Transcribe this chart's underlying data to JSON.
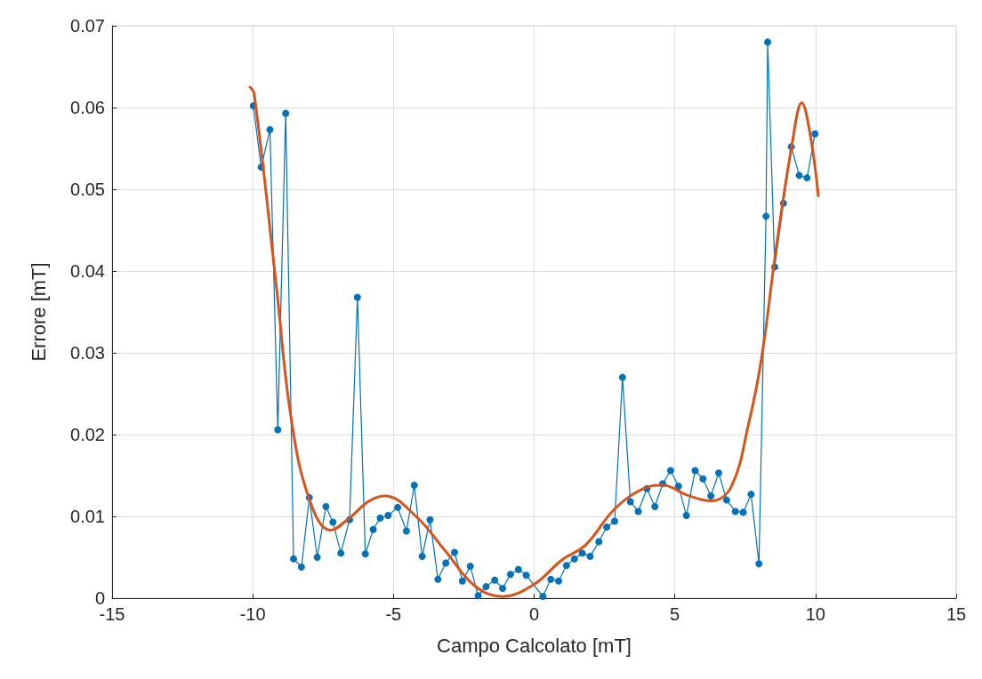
{
  "chart_data": {
    "type": "line",
    "xlabel": "Campo Calcolato [mT]",
    "ylabel": "Errore [mT]",
    "xlim": [
      -15,
      15
    ],
    "xticks": [
      -15,
      -10,
      -5,
      0,
      5,
      10,
      15
    ],
    "ylim": [
      0,
      0.07
    ],
    "yticks": [
      0,
      0.01,
      0.02,
      0.03,
      0.04,
      0.05,
      0.06,
      0.07
    ],
    "grid": true,
    "series": [
      {
        "color": "#0072bd",
        "marker": "circle",
        "x": [
          -9.98,
          -9.7,
          -9.39,
          -9.11,
          -8.83,
          -8.55,
          -8.27,
          -7.99,
          -7.71,
          -7.4,
          -7.15,
          -6.87,
          -6.56,
          -6.28,
          -6.0,
          -5.72,
          -5.47,
          -5.19,
          -4.85,
          -4.54,
          -4.26,
          -3.98,
          -3.7,
          -3.42,
          -3.14,
          -2.83,
          -2.55,
          -2.27,
          -1.99,
          -1.71,
          -1.4,
          -1.12,
          -0.84,
          -0.56,
          -0.28,
          0.31,
          0.59,
          0.87,
          1.15,
          1.43,
          1.71,
          1.99,
          2.3,
          2.58,
          2.86,
          3.14,
          3.42,
          3.7,
          4.01,
          4.29,
          4.57,
          4.85,
          5.13,
          5.41,
          5.72,
          6.0,
          6.28,
          6.56,
          6.84,
          7.15,
          7.43,
          7.71,
          7.99,
          8.24,
          8.3,
          8.55,
          8.86,
          9.14,
          9.42,
          9.7,
          9.98
        ],
        "values": [
          0.0602,
          0.0527,
          0.0573,
          0.0206,
          0.0593,
          0.0048,
          0.0038,
          0.0123,
          0.005,
          0.0112,
          0.0093,
          0.0055,
          0.0096,
          0.0368,
          0.0054,
          0.0084,
          0.0098,
          0.0101,
          0.0111,
          0.0082,
          0.0138,
          0.0051,
          0.0096,
          0.0023,
          0.0043,
          0.0056,
          0.0021,
          0.0039,
          0.0003,
          0.0014,
          0.0022,
          0.0012,
          0.0029,
          0.0035,
          0.0028,
          0.0002,
          0.0023,
          0.0021,
          0.004,
          0.0048,
          0.0055,
          0.0051,
          0.0069,
          0.0087,
          0.0094,
          0.027,
          0.0118,
          0.0106,
          0.0134,
          0.0112,
          0.014,
          0.0156,
          0.0137,
          0.0101,
          0.0156,
          0.0146,
          0.0125,
          0.0153,
          0.012,
          0.0106,
          0.0105,
          0.0127,
          0.0042,
          0.0467,
          0.068,
          0.0405,
          0.0483,
          0.0552,
          0.0517,
          0.0514,
          0.0568
        ]
      },
      {
        "color": "#d95319",
        "marker": "none",
        "x": [
          -10.1,
          -9.95,
          -9.17,
          -8.64,
          -7.99,
          -7.24,
          -6.53,
          -5.9,
          -5.32,
          -4.2,
          -3.14,
          -2.11,
          -1.12,
          0,
          1.0,
          1.83,
          2.86,
          3.89,
          4.57,
          5.44,
          6.28,
          7.0,
          7.62,
          8.08,
          8.61,
          9.17,
          9.51,
          9.82,
          10.1
        ],
        "values": [
          0.0625,
          0.0617,
          0.0384,
          0.0221,
          0.0121,
          0.0083,
          0.0099,
          0.0118,
          0.0125,
          0.01,
          0.0057,
          0.0015,
          0.0002,
          0.0017,
          0.0047,
          0.0065,
          0.0109,
          0.0134,
          0.0138,
          0.0126,
          0.0119,
          0.0136,
          0.0213,
          0.0293,
          0.043,
          0.0556,
          0.0606,
          0.0565,
          0.0492
        ]
      }
    ]
  }
}
